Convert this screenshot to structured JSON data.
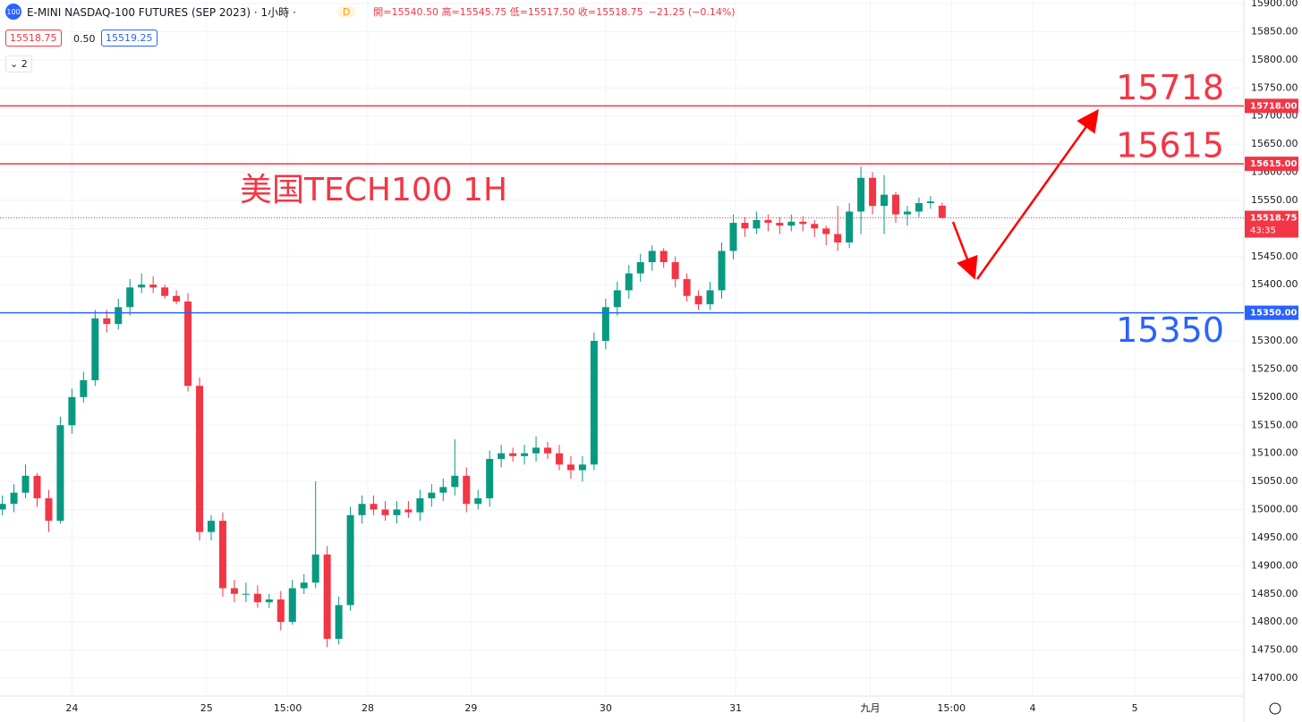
{
  "header": {
    "badge": "100",
    "symbol": "E-MINI NASDAQ-100 FUTURES (SEP 2023) · 1小時 ·",
    "session": "D",
    "ohlc": "開=15540.50 高=15545.75 低=15517.50 收=15518.75",
    "change": "−21.25 (−0.14%)",
    "bid": "15518.75",
    "spread": "0.50",
    "ask": "15519.25",
    "indicators": "2"
  },
  "chart_data": {
    "type": "candlestick",
    "up_color": "#089981",
    "down_color": "#f23645",
    "grid": true,
    "annotation": "美国TECH100 1H",
    "countdown": "43:35",
    "open": [
      15000,
      15010,
      15030,
      15060,
      15020,
      14980,
      15150,
      15200,
      15230,
      15340,
      15330,
      15360,
      15395,
      15400,
      15395,
      15380,
      15370,
      15220,
      14960,
      14980,
      14860,
      14850,
      14850,
      14835,
      14840,
      14800,
      14860,
      14870,
      14920,
      14770,
      14830,
      14990,
      15010,
      15000,
      14990,
      15000,
      14995,
      15020,
      15030,
      15040,
      15060,
      15010,
      15020,
      15090,
      15100,
      15095,
      15100,
      15110,
      15100,
      15080,
      15070,
      15080,
      15300,
      15360,
      15390,
      15420,
      15440,
      15460,
      15440,
      15410,
      15380,
      15365,
      15390,
      15460,
      15510,
      15500,
      15515,
      15510,
      15505,
      15512,
      15508,
      15500,
      15490,
      15475,
      15530,
      15590,
      15540,
      15560,
      15525,
      15530,
      15545,
      15540.5
    ],
    "high": [
      15025,
      15045,
      15080,
      15065,
      15035,
      15165,
      15215,
      15245,
      15355,
      15355,
      15375,
      15410,
      15420,
      15415,
      15400,
      15390,
      15385,
      15235,
      14990,
      14995,
      14875,
      14870,
      14865,
      14850,
      14855,
      14875,
      14885,
      15050,
      14935,
      14845,
      15005,
      15025,
      15025,
      15015,
      15015,
      15015,
      15035,
      15045,
      15055,
      15125,
      15075,
      15035,
      15105,
      15115,
      15110,
      15115,
      15130,
      15120,
      15115,
      15095,
      15095,
      15315,
      15375,
      15405,
      15435,
      15455,
      15470,
      15465,
      15450,
      15420,
      15390,
      15405,
      15475,
      15525,
      15520,
      15530,
      15525,
      15520,
      15525,
      15522,
      15515,
      15505,
      15540,
      15545,
      15610,
      15600,
      15595,
      15565,
      15540,
      15555,
      15558,
      15545.75
    ],
    "low": [
      14990,
      14995,
      15020,
      15005,
      14960,
      14975,
      15135,
      15190,
      15220,
      15315,
      15320,
      15345,
      15385,
      15385,
      15375,
      15365,
      15210,
      14945,
      14945,
      14845,
      14835,
      14835,
      14825,
      14825,
      14785,
      14795,
      14850,
      14860,
      14755,
      14760,
      14820,
      14975,
      14990,
      14980,
      14975,
      14985,
      14980,
      15005,
      15015,
      15025,
      14995,
      15000,
      15005,
      15075,
      15085,
      15080,
      15085,
      15090,
      15070,
      15055,
      15050,
      15070,
      15285,
      15345,
      15375,
      15405,
      15425,
      15430,
      15395,
      15370,
      15355,
      15355,
      15375,
      15445,
      15485,
      15490,
      15495,
      15490,
      15495,
      15495,
      15485,
      15470,
      15460,
      15465,
      15490,
      15525,
      15490,
      15510,
      15505,
      15520,
      15535,
      15517.5
    ],
    "close": [
      15010,
      15030,
      15060,
      15020,
      14980,
      15150,
      15200,
      15230,
      15340,
      15330,
      15360,
      15395,
      15400,
      15395,
      15380,
      15370,
      15220,
      14960,
      14980,
      14860,
      14850,
      14850,
      14835,
      14840,
      14800,
      14860,
      14870,
      14920,
      14770,
      14830,
      14990,
      15010,
      15000,
      14990,
      15000,
      14995,
      15020,
      15030,
      15040,
      15060,
      15010,
      15020,
      15090,
      15100,
      15095,
      15100,
      15110,
      15100,
      15080,
      15070,
      15080,
      15300,
      15360,
      15390,
      15420,
      15440,
      15460,
      15440,
      15410,
      15380,
      15365,
      15390,
      15460,
      15510,
      15500,
      15515,
      15510,
      15505,
      15512,
      15508,
      15500,
      15490,
      15475,
      15530,
      15590,
      15540,
      15560,
      15525,
      15530,
      15545,
      15548,
      15518.75
    ],
    "xlim": [
      -0.2,
      107
    ],
    "xticks": [
      {
        "value": 6,
        "label": "24"
      },
      {
        "value": 17.6,
        "label": "25"
      },
      {
        "value": 24.6,
        "label": "15:00"
      },
      {
        "value": 31.5,
        "label": "28"
      },
      {
        "value": 40.4,
        "label": "29"
      },
      {
        "value": 52,
        "label": "30"
      },
      {
        "value": 63.2,
        "label": "31"
      },
      {
        "value": 74.8,
        "label": "九月"
      },
      {
        "value": 81.8,
        "label": "15:00"
      },
      {
        "value": 88.8,
        "label": "4"
      },
      {
        "value": 97.6,
        "label": "5"
      }
    ],
    "ylim": [
      14700,
      15900
    ],
    "yticks": [
      {
        "value": 14700,
        "label": "14700.00"
      },
      {
        "value": 14750,
        "label": "14750.00"
      },
      {
        "value": 14800,
        "label": "14800.00"
      },
      {
        "value": 14850,
        "label": "14850.00"
      },
      {
        "value": 14900,
        "label": "14900.00"
      },
      {
        "value": 14950,
        "label": "14950.00"
      },
      {
        "value": 15000,
        "label": "15000.00"
      },
      {
        "value": 15050,
        "label": "15050.00"
      },
      {
        "value": 15100,
        "label": "15100.00"
      },
      {
        "value": 15150,
        "label": "15150.00"
      },
      {
        "value": 15200,
        "label": "15200.00"
      },
      {
        "value": 15250,
        "label": "15250.00"
      },
      {
        "value": 15300,
        "label": "15300.00"
      },
      {
        "value": 15350,
        "label": "15350.00"
      },
      {
        "value": 15400,
        "label": "15400.00"
      },
      {
        "value": 15450,
        "label": "15450.00"
      },
      {
        "value": 15500,
        "label": "15500.00"
      },
      {
        "value": 15550,
        "label": "15550.00"
      },
      {
        "value": 15600,
        "label": "15600.00"
      },
      {
        "value": 15650,
        "label": "15650.00"
      },
      {
        "value": 15700,
        "label": "15700.00"
      },
      {
        "value": 15750,
        "label": "15750.00"
      },
      {
        "value": 15800,
        "label": "15800.00"
      },
      {
        "value": 15850,
        "label": "15850.00"
      },
      {
        "value": 15900,
        "label": "15900.00"
      }
    ],
    "hlines": [
      {
        "value": 15718,
        "label": "15718",
        "tag": "15718.00",
        "color": "#f23645"
      },
      {
        "value": 15615,
        "label": "15615",
        "tag": "15615.00",
        "color": "#f23645"
      },
      {
        "value": 15350,
        "label": "15350",
        "tag": "15350.00",
        "color": "#2962ff"
      }
    ]
  }
}
